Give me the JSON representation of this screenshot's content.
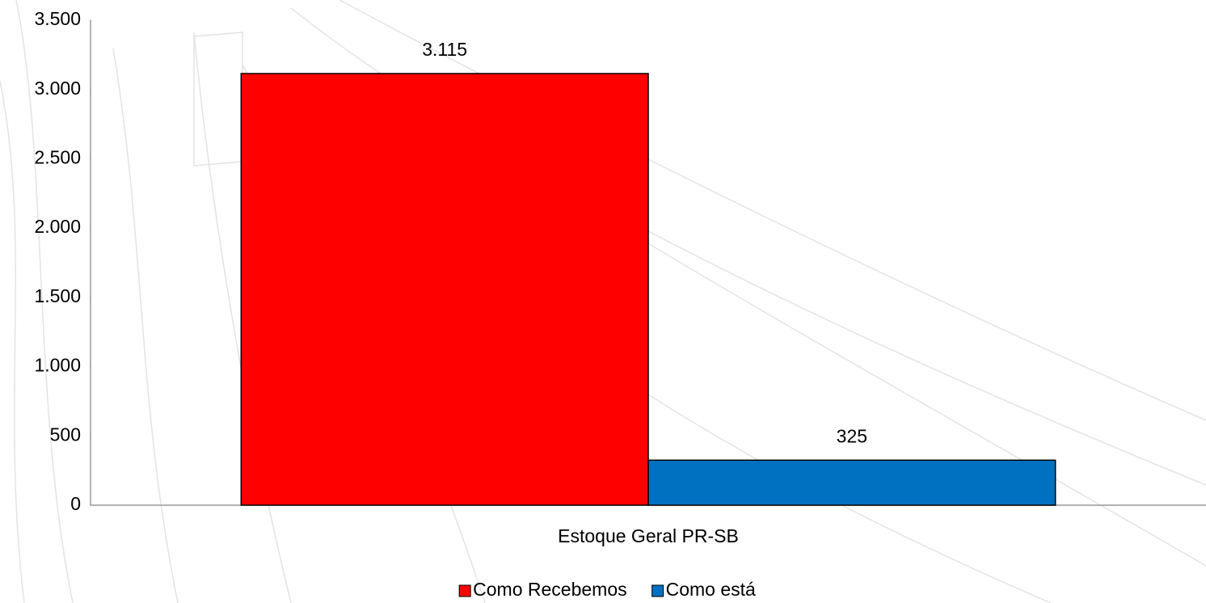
{
  "chart_data": {
    "type": "bar",
    "categories": [
      "Estoque Geral PR-SB"
    ],
    "series": [
      {
        "name": "Como Recebemos",
        "color": "#ff0000",
        "values": [
          3115
        ],
        "value_labels": [
          "3.115"
        ]
      },
      {
        "name": "Como está",
        "color": "#0070c0",
        "values": [
          325
        ]
      }
    ],
    "ylim": [
      0,
      3500
    ],
    "yticks": [
      0,
      500,
      {
        "value": 1000,
        "label": "1.000"
      },
      {
        "value": 1500,
        "label": "1.500"
      },
      {
        "value": 2000,
        "label": "2.000"
      },
      {
        "value": 2500,
        "label": "2.500"
      },
      {
        "value": 3000,
        "label": "3.000"
      },
      {
        "value": 3500,
        "label": "3.500"
      }
    ],
    "grid": false,
    "legend": "bottom"
  }
}
